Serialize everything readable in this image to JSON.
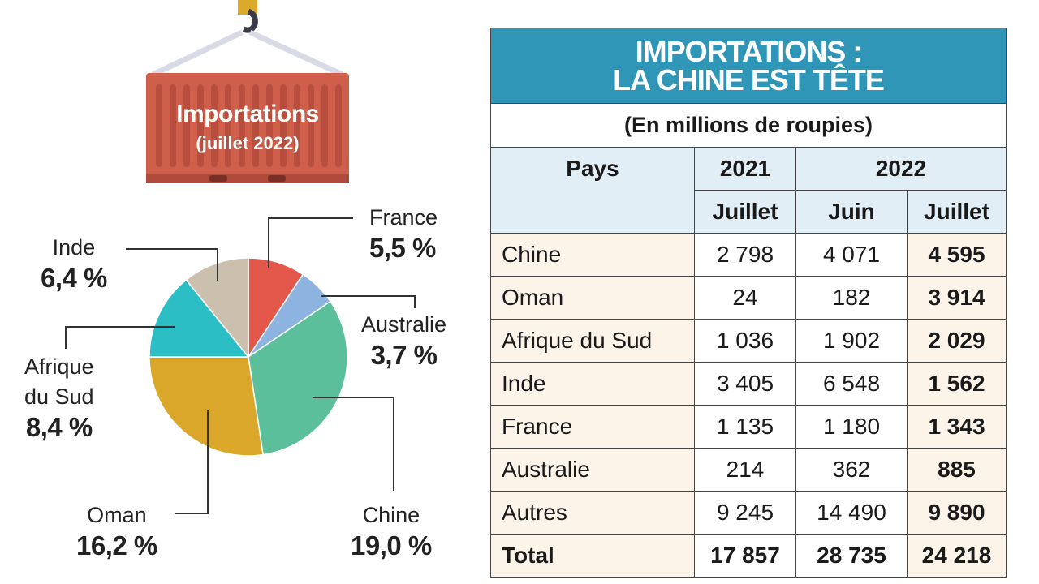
{
  "illustration": {
    "line1": "Importations",
    "line2": "(juillet 2022)"
  },
  "chart_data": {
    "type": "pie",
    "title": "Importations (juillet 2022)",
    "slices": [
      {
        "label": "France",
        "value": 5.5,
        "text": "5,5 %",
        "color": "#e4574b"
      },
      {
        "label": "Australie",
        "value": 3.7,
        "text": "3,7 %",
        "color": "#8db3e0"
      },
      {
        "label": "Chine",
        "value": 19.0,
        "text": "19,0 %",
        "color": "#5bbf9b"
      },
      {
        "label": "Oman",
        "value": 16.2,
        "text": "16,2 %",
        "color": "#dba72b"
      },
      {
        "label": "Afrique du Sud",
        "value": 8.4,
        "text": "8,4 %",
        "color": "#2bbfc5"
      },
      {
        "label": "Inde",
        "value": 6.4,
        "text": "6,4 %",
        "color": "#cbbfad"
      }
    ]
  },
  "labels": {
    "afrique_l1": "Afrique",
    "afrique_l2": "du Sud"
  },
  "table": {
    "title_l1": "IMPORTATIONS :",
    "title_l2": "LA CHINE EST TÊTE",
    "subtitle": "(En millions de roupies)",
    "col_pays": "Pays",
    "year1": "2021",
    "year2": "2022",
    "months": [
      "Juillet",
      "Juin",
      "Juillet"
    ],
    "rows": [
      [
        "Chine",
        "2 798",
        "4 071",
        "4 595"
      ],
      [
        "Oman",
        "24",
        "182",
        "3 914"
      ],
      [
        "Afrique du Sud",
        "1 036",
        "1 902",
        "2 029"
      ],
      [
        "Inde",
        "3 405",
        "6 548",
        "1 562"
      ],
      [
        "France",
        "1 135",
        "1 180",
        "1 343"
      ],
      [
        "Australie",
        "214",
        "362",
        "885"
      ],
      [
        "Autres",
        "9 245",
        "14 490",
        "9 890"
      ]
    ],
    "total": [
      "Total",
      "17 857",
      "28 735",
      "24 218"
    ]
  },
  "colors": {
    "header": "#2f96b8",
    "container": "#cf5e4b",
    "header_row": "#e2eef6",
    "highlight": "#fdf4e9"
  }
}
